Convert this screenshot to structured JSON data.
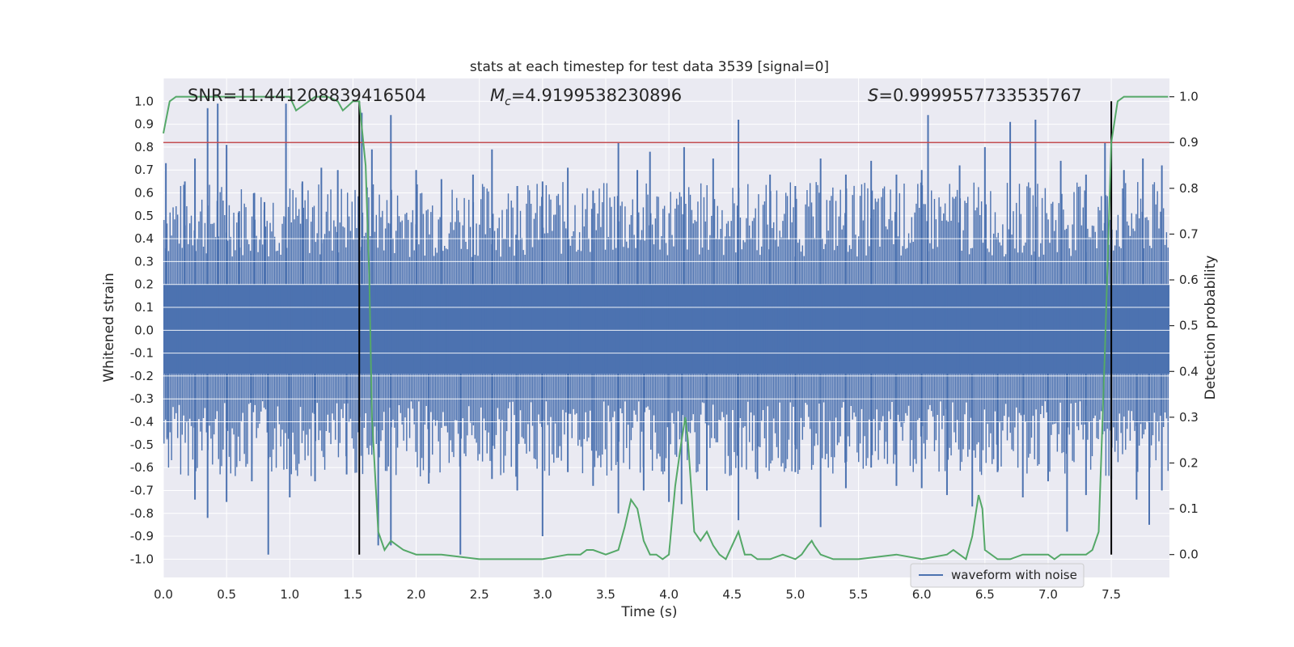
{
  "chart_data": {
    "type": "line",
    "title": "stats at each timestep for test data 3539 [signal=0]",
    "xlabel": "Time (s)",
    "ylabel": "Whitened strain",
    "ylabel_right": "Detection probability",
    "xlim": [
      0.0,
      7.96
    ],
    "ylim": [
      -1.08,
      1.1
    ],
    "ylim_right": [
      -0.05,
      1.04
    ],
    "x_ticks": [
      "0.0",
      "0.5",
      "1.0",
      "1.5",
      "2.0",
      "2.5",
      "3.0",
      "3.5",
      "4.0",
      "4.5",
      "5.0",
      "5.5",
      "6.0",
      "6.5",
      "7.0",
      "7.5"
    ],
    "x_tick_values": [
      0.0,
      0.5,
      1.0,
      1.5,
      2.0,
      2.5,
      3.0,
      3.5,
      4.0,
      4.5,
      5.0,
      5.5,
      6.0,
      6.5,
      7.0,
      7.5
    ],
    "y_ticks": [
      "1.0",
      "0.9",
      "0.8",
      "0.7",
      "0.6",
      "0.5",
      "0.4",
      "0.3",
      "0.2",
      "0.1",
      "0.0",
      "-0.1",
      "-0.2",
      "-0.3",
      "-0.4",
      "-0.5",
      "-0.6",
      "-0.7",
      "-0.8",
      "-0.9",
      "-1.0"
    ],
    "y_tick_values": [
      1.0,
      0.9,
      0.8,
      0.7,
      0.6,
      0.5,
      0.4,
      0.3,
      0.2,
      0.1,
      0.0,
      -0.1,
      -0.2,
      -0.3,
      -0.4,
      -0.5,
      -0.6,
      -0.7,
      -0.8,
      -0.9,
      -1.0
    ],
    "y_right_ticks": [
      "1.0",
      "0.9",
      "0.8",
      "0.7",
      "0.6",
      "0.5",
      "0.4",
      "0.3",
      "0.2",
      "0.1",
      "0.0"
    ],
    "y_right_tick_values": [
      1.0,
      0.9,
      0.8,
      0.7,
      0.6,
      0.5,
      0.4,
      0.3,
      0.2,
      0.1,
      0.0
    ],
    "grid": true,
    "legend": {
      "entries": [
        "waveform with noise"
      ],
      "placement": "lower-right"
    },
    "annotations": {
      "snr": "SNR=11.441208839416504",
      "mc_symbol": "M",
      "mc_sub": "c",
      "mc_value": "=4.9199538230896",
      "s_symbol": "S",
      "s_value": "=0.9999557733535767"
    },
    "threshold": {
      "axis": "right",
      "value": 0.9,
      "color": "#c44e52"
    },
    "vertical_markers": [
      {
        "x": 1.55,
        "y_range": [
          -0.98,
          1.0
        ]
      },
      {
        "x": 7.5,
        "y_range": [
          -0.98,
          1.0
        ]
      }
    ],
    "series": [
      {
        "name": "waveform with noise",
        "axis": "left",
        "color": "#4c72b0",
        "band": {
          "upper": 0.2,
          "lower": -0.19
        },
        "spikes_up": [
          [
            0.02,
            0.73
          ],
          [
            0.17,
            0.65
          ],
          [
            0.25,
            0.75
          ],
          [
            0.35,
            0.97
          ],
          [
            0.43,
            0.99
          ],
          [
            0.5,
            0.81
          ],
          [
            0.6,
            0.52
          ],
          [
            0.72,
            0.6
          ],
          [
            0.8,
            0.56
          ],
          [
            0.97,
            0.99
          ],
          [
            1.1,
            0.65
          ],
          [
            1.25,
            0.71
          ],
          [
            1.38,
            0.7
          ],
          [
            1.57,
            0.95
          ],
          [
            1.65,
            0.79
          ],
          [
            1.8,
            0.94
          ],
          [
            2.0,
            0.7
          ],
          [
            2.2,
            0.66
          ],
          [
            2.45,
            0.68
          ],
          [
            2.6,
            0.79
          ],
          [
            2.8,
            0.63
          ],
          [
            3.0,
            0.65
          ],
          [
            3.2,
            0.71
          ],
          [
            3.4,
            0.61
          ],
          [
            3.6,
            0.82
          ],
          [
            3.75,
            0.7
          ],
          [
            3.85,
            0.78
          ],
          [
            4.12,
            0.8
          ],
          [
            4.35,
            0.75
          ],
          [
            4.55,
            0.92
          ],
          [
            4.8,
            0.68
          ],
          [
            5.0,
            0.63
          ],
          [
            5.2,
            0.75
          ],
          [
            5.4,
            0.68
          ],
          [
            5.6,
            0.74
          ],
          [
            5.8,
            0.68
          ],
          [
            6.0,
            0.7
          ],
          [
            6.05,
            0.94
          ],
          [
            6.3,
            0.72
          ],
          [
            6.5,
            0.8
          ],
          [
            6.7,
            0.91
          ],
          [
            6.9,
            0.92
          ],
          [
            7.1,
            0.74
          ],
          [
            7.3,
            0.68
          ],
          [
            7.45,
            0.82
          ],
          [
            7.6,
            0.7
          ],
          [
            7.75,
            0.75
          ],
          [
            7.9,
            0.72
          ]
        ],
        "spikes_down": [
          [
            0.03,
            -0.47
          ],
          [
            0.25,
            -0.74
          ],
          [
            0.35,
            -0.82
          ],
          [
            0.5,
            -0.75
          ],
          [
            0.7,
            -0.66
          ],
          [
            0.83,
            -0.98
          ],
          [
            1.0,
            -0.73
          ],
          [
            1.2,
            -0.66
          ],
          [
            1.45,
            -0.63
          ],
          [
            1.7,
            -0.94
          ],
          [
            1.8,
            -0.94
          ],
          [
            2.1,
            -0.67
          ],
          [
            2.35,
            -0.98
          ],
          [
            2.6,
            -0.65
          ],
          [
            2.8,
            -0.7
          ],
          [
            3.0,
            -0.9
          ],
          [
            3.2,
            -0.62
          ],
          [
            3.4,
            -0.68
          ],
          [
            3.6,
            -0.8
          ],
          [
            3.8,
            -0.7
          ],
          [
            4.0,
            -0.75
          ],
          [
            4.1,
            -0.76
          ],
          [
            4.3,
            -0.7
          ],
          [
            4.55,
            -0.83
          ],
          [
            4.7,
            -0.65
          ],
          [
            5.0,
            -0.62
          ],
          [
            5.2,
            -0.86
          ],
          [
            5.4,
            -0.69
          ],
          [
            5.6,
            -0.6
          ],
          [
            5.8,
            -0.68
          ],
          [
            6.0,
            -0.69
          ],
          [
            6.2,
            -0.72
          ],
          [
            6.4,
            -0.77
          ],
          [
            6.6,
            -0.62
          ],
          [
            6.8,
            -0.73
          ],
          [
            7.0,
            -0.66
          ],
          [
            7.15,
            -0.88
          ],
          [
            7.3,
            -0.72
          ],
          [
            7.5,
            -0.65
          ],
          [
            7.7,
            -0.74
          ],
          [
            7.8,
            -0.85
          ],
          [
            7.9,
            -0.7
          ]
        ]
      },
      {
        "name": "",
        "axis": "right",
        "color": "#55a868",
        "x": [
          0.0,
          0.05,
          0.1,
          0.2,
          0.3,
          0.4,
          0.5,
          0.6,
          0.7,
          0.8,
          0.9,
          0.97,
          1.0,
          1.05,
          1.1,
          1.15,
          1.2,
          1.3,
          1.38,
          1.42,
          1.46,
          1.5,
          1.55,
          1.6,
          1.63,
          1.65,
          1.7,
          1.75,
          1.8,
          1.85,
          1.9,
          2.0,
          2.2,
          2.5,
          2.8,
          3.0,
          3.2,
          3.3,
          3.35,
          3.4,
          3.5,
          3.6,
          3.65,
          3.7,
          3.75,
          3.8,
          3.85,
          3.9,
          3.95,
          4.0,
          4.05,
          4.1,
          4.13,
          4.15,
          4.2,
          4.25,
          4.3,
          4.35,
          4.4,
          4.45,
          4.5,
          4.55,
          4.6,
          4.65,
          4.7,
          4.8,
          4.9,
          5.0,
          5.05,
          5.1,
          5.13,
          5.15,
          5.2,
          5.3,
          5.5,
          5.8,
          6.0,
          6.2,
          6.25,
          6.3,
          6.35,
          6.4,
          6.45,
          6.48,
          6.5,
          6.6,
          6.7,
          6.8,
          6.9,
          7.0,
          7.05,
          7.1,
          7.2,
          7.3,
          7.35,
          7.4,
          7.45,
          7.5,
          7.55,
          7.6,
          7.7,
          7.8,
          7.95
        ],
        "values": [
          0.92,
          0.99,
          1.0,
          1.0,
          1.0,
          1.0,
          1.0,
          1.0,
          1.0,
          1.0,
          1.0,
          1.0,
          1.0,
          0.97,
          0.98,
          0.99,
          1.0,
          1.0,
          0.99,
          0.97,
          0.98,
          0.99,
          0.99,
          0.85,
          0.6,
          0.3,
          0.05,
          0.01,
          0.03,
          0.02,
          0.01,
          0.0,
          0.0,
          -0.01,
          -0.01,
          -0.01,
          0.0,
          0.0,
          0.01,
          0.01,
          0.0,
          0.01,
          0.06,
          0.12,
          0.1,
          0.03,
          0.0,
          0.0,
          -0.01,
          0.0,
          0.15,
          0.25,
          0.3,
          0.25,
          0.05,
          0.03,
          0.05,
          0.02,
          0.0,
          -0.01,
          0.02,
          0.05,
          0.0,
          0.0,
          -0.01,
          -0.01,
          0.0,
          -0.01,
          0.0,
          0.02,
          0.03,
          0.02,
          0.0,
          -0.01,
          -0.01,
          0.0,
          -0.01,
          0.0,
          0.01,
          0.0,
          -0.01,
          0.04,
          0.13,
          0.1,
          0.01,
          -0.01,
          -0.01,
          0.0,
          0.0,
          0.0,
          -0.01,
          0.0,
          0.0,
          0.0,
          0.01,
          0.05,
          0.45,
          0.9,
          0.99,
          1.0,
          1.0,
          1.0,
          1.0
        ]
      }
    ]
  }
}
